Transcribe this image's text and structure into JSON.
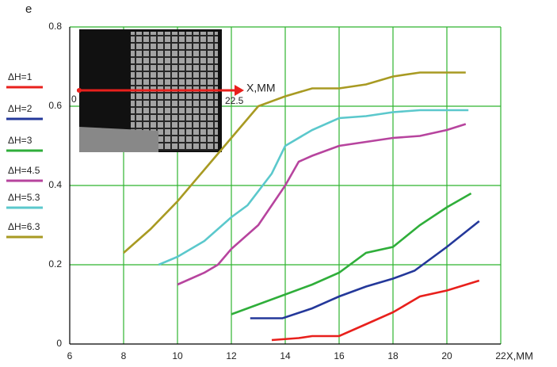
{
  "chart_data": {
    "type": "line",
    "panel_label": "e",
    "xlabel": "X,MM",
    "xlim": [
      6,
      22
    ],
    "xticks": [
      6,
      8,
      10,
      12,
      14,
      16,
      18,
      20,
      22
    ],
    "ylim": [
      0,
      0.8
    ],
    "yticks": [
      0,
      0.2,
      0.4,
      0.6,
      0.8
    ],
    "grid": true,
    "grid_color": "#2fb52f",
    "inset_annotations": {
      "axis_label": "X,MM",
      "start": "0",
      "end": "22.5"
    },
    "series": [
      {
        "name": "ΔH=1",
        "color": "#e8201c",
        "x": [
          13.5,
          14.5,
          15,
          16,
          17,
          18,
          19,
          20,
          21.2
        ],
        "values": [
          0.01,
          0.015,
          0.02,
          0.02,
          0.05,
          0.08,
          0.12,
          0.135,
          0.16
        ]
      },
      {
        "name": "ΔH=2",
        "color": "#24389a",
        "x": [
          12.7,
          13.9,
          15,
          16,
          17,
          18,
          18.8,
          20,
          21.2
        ],
        "values": [
          0.065,
          0.065,
          0.09,
          0.12,
          0.145,
          0.165,
          0.185,
          0.245,
          0.31
        ]
      },
      {
        "name": "ΔH=3",
        "color": "#2fae3a",
        "x": [
          12,
          13,
          14,
          15,
          16,
          17,
          18,
          19,
          20,
          20.9
        ],
        "values": [
          0.075,
          0.1,
          0.125,
          0.15,
          0.18,
          0.23,
          0.245,
          0.3,
          0.345,
          0.38
        ]
      },
      {
        "name": "ΔH=4.5",
        "color": "#b7449e",
        "x": [
          10,
          11,
          11.5,
          12,
          13,
          14,
          14.5,
          15,
          16,
          17,
          18,
          19,
          20,
          20.7
        ],
        "values": [
          0.15,
          0.18,
          0.2,
          0.24,
          0.3,
          0.4,
          0.46,
          0.475,
          0.5,
          0.51,
          0.52,
          0.525,
          0.54,
          0.555
        ]
      },
      {
        "name": "ΔH=5.3",
        "color": "#5bc8cc",
        "x": [
          9.3,
          10,
          11,
          12,
          12.6,
          13.5,
          14,
          15,
          16,
          17,
          18,
          19,
          20,
          20.8
        ],
        "values": [
          0.2,
          0.22,
          0.26,
          0.32,
          0.35,
          0.43,
          0.5,
          0.54,
          0.57,
          0.575,
          0.585,
          0.59,
          0.59,
          0.59
        ]
      },
      {
        "name": "ΔH=6.3",
        "color": "#a89a22",
        "x": [
          8,
          9,
          10,
          11,
          12,
          13,
          14,
          15,
          16,
          17,
          18,
          19,
          20,
          20.7
        ],
        "values": [
          0.23,
          0.29,
          0.36,
          0.44,
          0.52,
          0.6,
          0.625,
          0.645,
          0.645,
          0.655,
          0.675,
          0.685,
          0.685,
          0.685
        ]
      }
    ]
  }
}
